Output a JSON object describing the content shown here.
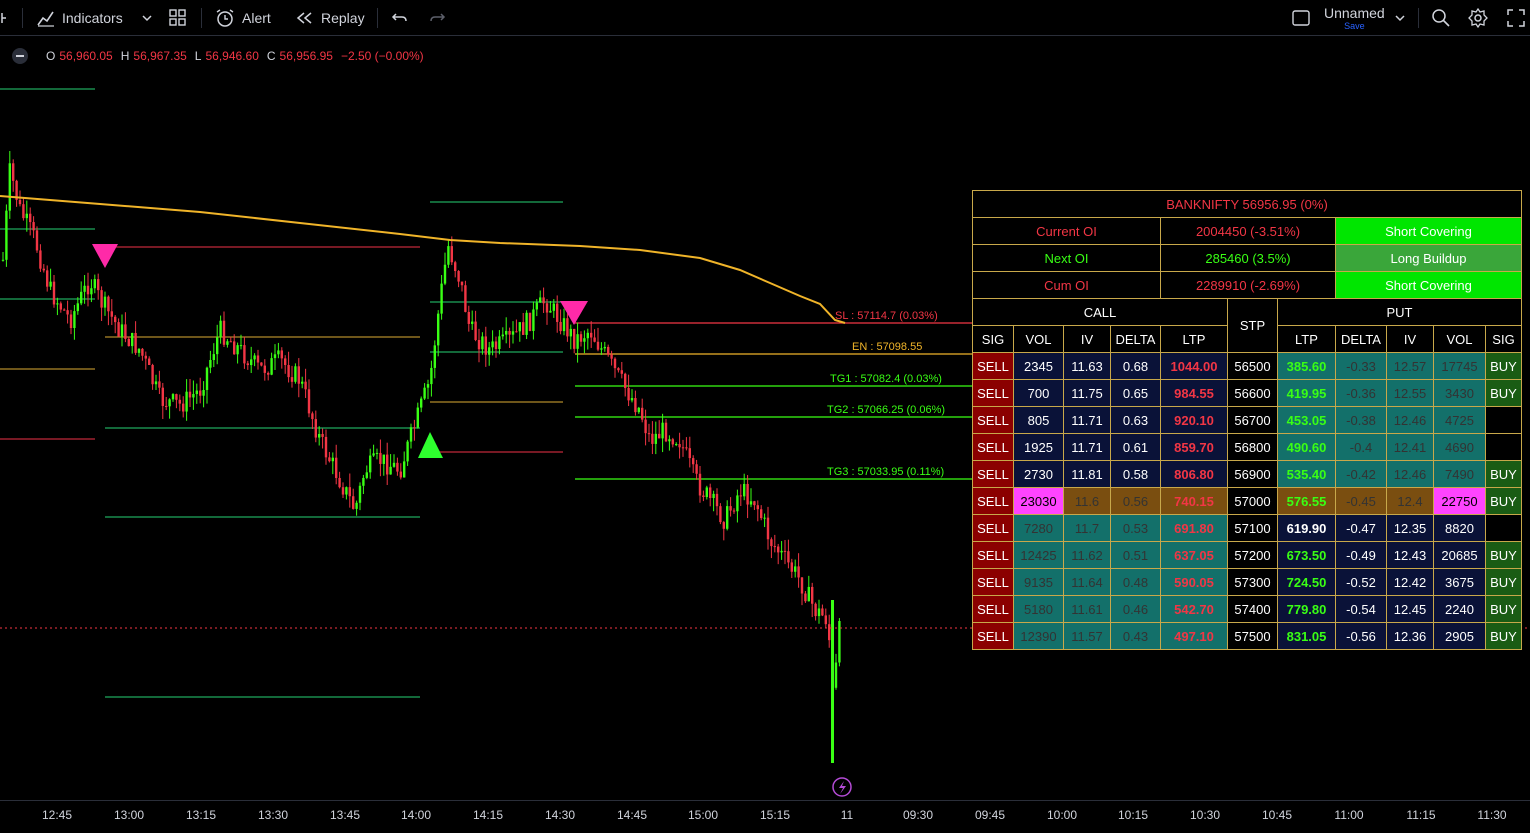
{
  "toolbar": {
    "indicators_label": "Indicators",
    "alert_label": "Alert",
    "replay_label": "Replay",
    "layout_name": "Unnamed",
    "save_label": "Save"
  },
  "legend": {
    "o_label": "O",
    "o_value": "56,960.05",
    "h_label": "H",
    "h_value": "56,967.35",
    "l_label": "L",
    "l_value": "56,946.60",
    "c_label": "C",
    "c_value": "56,956.95",
    "change": "−2.50 (−0.00%)"
  },
  "levels": {
    "sl": "SL : 57114.7 (0.03%)",
    "en": "EN : 57098.55",
    "tg1": "TG1 : 57082.4 (0.03%)",
    "tg2": "TG2 : 57066.25 (0.06%)",
    "tg3": "TG3 : 57033.95 (0.11%)"
  },
  "xaxis": [
    "12:45",
    "13:00",
    "13:15",
    "13:30",
    "13:45",
    "14:00",
    "14:15",
    "14:30",
    "14:45",
    "15:00",
    "15:15",
    "11",
    "09:30",
    "09:45",
    "10:00",
    "10:15",
    "10:30",
    "10:45",
    "11:00",
    "11:15",
    "11:30"
  ],
  "oi": {
    "title": "BANKNIFTY   56956.95 (0%)",
    "rows": [
      {
        "label": "Current OI",
        "value": "2004450 (-3.51%)",
        "status": "Short Covering"
      },
      {
        "label": "Next OI",
        "value": "285460 (3.5%)",
        "status": "Long Buildup"
      },
      {
        "label": "Cum OI",
        "value": "2289910 (-2.69%)",
        "status": "Short Covering"
      }
    ],
    "call_header": "CALL",
    "put_header": "PUT",
    "stp_header": "STP",
    "cols": {
      "sig": "SIG",
      "vol": "VOL",
      "iv": "IV",
      "delta": "DELTA",
      "ltp": "LTP"
    }
  },
  "chain": [
    {
      "csig": "SELL",
      "cvol": "2345",
      "civ": "11.63",
      "cdelta": "0.68",
      "cltp": "1044.00",
      "stp": "56500",
      "pltp": "385.60",
      "pdelta": "-0.33",
      "piv": "12.57",
      "pvol": "17745",
      "psig": "BUY"
    },
    {
      "csig": "SELL",
      "cvol": "700",
      "civ": "11.75",
      "cdelta": "0.65",
      "cltp": "984.55",
      "stp": "56600",
      "pltp": "419.95",
      "pdelta": "-0.36",
      "piv": "12.55",
      "pvol": "3430",
      "psig": "BUY"
    },
    {
      "csig": "SELL",
      "cvol": "805",
      "civ": "11.71",
      "cdelta": "0.63",
      "cltp": "920.10",
      "stp": "56700",
      "pltp": "453.05",
      "pdelta": "-0.38",
      "piv": "12.46",
      "pvol": "4725",
      "psig": ""
    },
    {
      "csig": "SELL",
      "cvol": "1925",
      "civ": "11.71",
      "cdelta": "0.61",
      "cltp": "859.70",
      "stp": "56800",
      "pltp": "490.60",
      "pdelta": "-0.4",
      "piv": "12.41",
      "pvol": "4690",
      "psig": ""
    },
    {
      "csig": "SELL",
      "cvol": "2730",
      "civ": "11.81",
      "cdelta": "0.58",
      "cltp": "806.80",
      "stp": "56900",
      "pltp": "535.40",
      "pdelta": "-0.42",
      "piv": "12.46",
      "pvol": "7490",
      "psig": "BUY"
    },
    {
      "csig": "SELL",
      "cvol": "23030",
      "civ": "11.6",
      "cdelta": "0.56",
      "cltp": "740.15",
      "stp": "57000",
      "pltp": "576.55",
      "pdelta": "-0.45",
      "piv": "12.4",
      "pvol": "22750",
      "psig": "BUY"
    },
    {
      "csig": "SELL",
      "cvol": "7280",
      "civ": "11.7",
      "cdelta": "0.53",
      "cltp": "691.80",
      "stp": "57100",
      "pltp": "619.90",
      "pdelta": "-0.47",
      "piv": "12.35",
      "pvol": "8820",
      "psig": ""
    },
    {
      "csig": "SELL",
      "cvol": "12425",
      "civ": "11.62",
      "cdelta": "0.51",
      "cltp": "637.05",
      "stp": "57200",
      "pltp": "673.50",
      "pdelta": "-0.49",
      "piv": "12.43",
      "pvol": "20685",
      "psig": "BUY"
    },
    {
      "csig": "SELL",
      "cvol": "9135",
      "civ": "11.64",
      "cdelta": "0.48",
      "cltp": "590.05",
      "stp": "57300",
      "pltp": "724.50",
      "pdelta": "-0.52",
      "piv": "12.42",
      "pvol": "3675",
      "psig": "BUY"
    },
    {
      "csig": "SELL",
      "cvol": "5180",
      "civ": "11.61",
      "cdelta": "0.46",
      "cltp": "542.70",
      "stp": "57400",
      "pltp": "779.80",
      "pdelta": "-0.54",
      "piv": "12.45",
      "pvol": "2240",
      "psig": "BUY"
    },
    {
      "csig": "SELL",
      "cvol": "12390",
      "civ": "11.57",
      "cdelta": "0.43",
      "cltp": "497.10",
      "stp": "57500",
      "pltp": "831.05",
      "pdelta": "-0.56",
      "piv": "12.36",
      "pvol": "2905",
      "psig": "BUY"
    }
  ],
  "colors": {
    "up": "#39ff14",
    "down": "#f23645",
    "vwap": "#f0b429",
    "marker_sell": "#ff2aa8",
    "marker_buy": "#2eff2e"
  }
}
